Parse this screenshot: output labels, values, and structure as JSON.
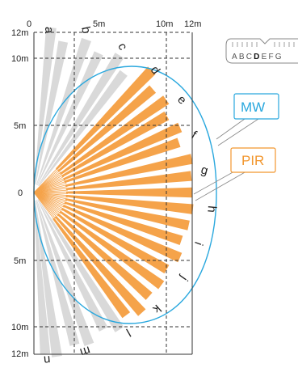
{
  "x_axis": {
    "labels": [
      "0",
      "5m",
      "10m",
      "12m"
    ],
    "values": [
      0,
      5,
      10,
      12
    ]
  },
  "y_axis": {
    "labels": [
      "12m",
      "10m",
      "5m",
      "0",
      "5m",
      "10m",
      "12m"
    ],
    "values": [
      12,
      10,
      5,
      0,
      -5,
      -10,
      -12
    ]
  },
  "zones": {
    "gray": [
      "a",
      "b",
      "c",
      "l",
      "m",
      "n"
    ],
    "orange_top": [
      "d",
      "e",
      "f",
      "g"
    ],
    "orange_bottom": [
      "h",
      "i",
      "j",
      "k"
    ]
  },
  "zone_letters_order": [
    "a",
    "b",
    "c",
    "d",
    "e",
    "f",
    "g",
    "h",
    "i",
    "j",
    "k",
    "l",
    "m",
    "n"
  ],
  "selector": {
    "text": "ABCDEFG",
    "selected": "D"
  },
  "callouts": {
    "mw": {
      "label": "MW",
      "color": "#2aa8de"
    },
    "pir": {
      "label": "PIR",
      "color": "#f2972f"
    }
  },
  "colors": {
    "pir_beam": "#f5a34a",
    "inactive_beam": "#d9d9d9",
    "mw_outline": "#2aa8de",
    "grid": "#333333"
  }
}
